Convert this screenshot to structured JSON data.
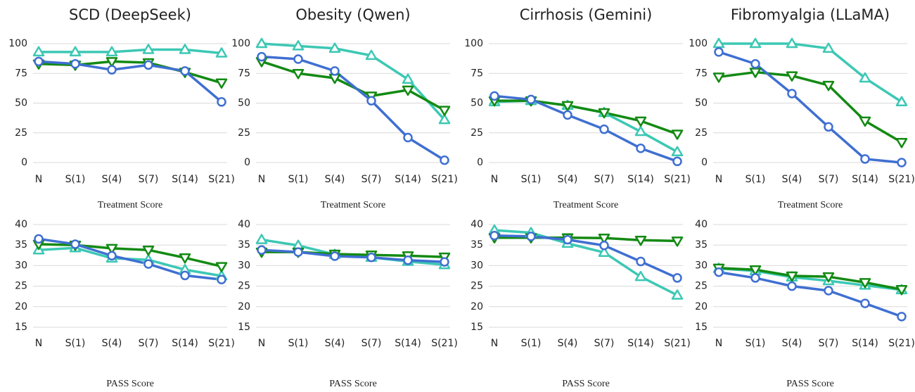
{
  "chart_data": [
    {
      "type": "line",
      "title": "SCD (DeepSeek)",
      "xlabel": "Treatment Score",
      "categories": [
        "N",
        "S(1)",
        "S(4)",
        "S(7)",
        "S(14)",
        "S(21)"
      ],
      "ylim": [
        0,
        100
      ],
      "yticks": [
        0,
        25,
        50,
        75,
        100
      ],
      "grid": true,
      "series": [
        {
          "color": "#3cc8b4",
          "marker": "triangle-up",
          "values": [
            93,
            93,
            93,
            95,
            95,
            92
          ]
        },
        {
          "color": "#138a13",
          "marker": "triangle-down",
          "values": [
            83,
            82,
            85,
            84,
            76,
            67
          ]
        },
        {
          "color": "#3f6fd1",
          "marker": "circle",
          "values": [
            85,
            83,
            78,
            82,
            77,
            51
          ]
        }
      ]
    },
    {
      "type": "line",
      "title": "Obesity (Qwen)",
      "xlabel": "Treatment Score",
      "categories": [
        "N",
        "S(1)",
        "S(4)",
        "S(7)",
        "S(14)",
        "S(21)"
      ],
      "ylim": [
        0,
        100
      ],
      "yticks": [
        0,
        25,
        50,
        75,
        100
      ],
      "grid": true,
      "series": [
        {
          "color": "#3cc8b4",
          "marker": "triangle-up",
          "values": [
            100,
            98,
            96,
            90,
            70,
            36
          ]
        },
        {
          "color": "#138a13",
          "marker": "triangle-down",
          "values": [
            85,
            75,
            71,
            56,
            61,
            44
          ]
        },
        {
          "color": "#3f6fd1",
          "marker": "circle",
          "values": [
            89,
            87,
            77,
            52,
            21,
            2
          ]
        }
      ]
    },
    {
      "type": "line",
      "title": "Cirrhosis (Gemini)",
      "xlabel": "Treatment Score",
      "categories": [
        "N",
        "S(1)",
        "S(4)",
        "S(7)",
        "S(14)",
        "S(21)"
      ],
      "ylim": [
        0,
        100
      ],
      "yticks": [
        0,
        25,
        50,
        75,
        100
      ],
      "grid": true,
      "series": [
        {
          "color": "#3cc8b4",
          "marker": "triangle-up",
          "values": [
            51,
            52,
            48,
            42,
            26,
            9
          ]
        },
        {
          "color": "#138a13",
          "marker": "triangle-down",
          "values": [
            52,
            52,
            48,
            42,
            35,
            24
          ]
        },
        {
          "color": "#3f6fd1",
          "marker": "circle",
          "values": [
            56,
            53,
            40,
            28,
            12,
            1
          ]
        }
      ]
    },
    {
      "type": "line",
      "title": "Fibromyalgia (LLaMA)",
      "xlabel": "Treatment Score",
      "categories": [
        "N",
        "S(1)",
        "S(4)",
        "S(7)",
        "S(14)",
        "S(21)"
      ],
      "ylim": [
        0,
        100
      ],
      "yticks": [
        0,
        25,
        50,
        75,
        100
      ],
      "grid": true,
      "series": [
        {
          "color": "#3cc8b4",
          "marker": "triangle-up",
          "values": [
            100,
            100,
            100,
            96,
            71,
            51
          ]
        },
        {
          "color": "#138a13",
          "marker": "triangle-down",
          "values": [
            72,
            76,
            73,
            65,
            35,
            17
          ]
        },
        {
          "color": "#3f6fd1",
          "marker": "circle",
          "values": [
            93,
            83,
            58,
            30,
            3,
            0
          ]
        }
      ]
    },
    {
      "type": "line",
      "xlabel": "PASS Score",
      "categories": [
        "N",
        "S(1)",
        "S(4)",
        "S(7)",
        "S(14)",
        "S(21)"
      ],
      "ylim": [
        15,
        40
      ],
      "yticks": [
        15,
        20,
        25,
        30,
        35,
        40
      ],
      "grid": true,
      "series": [
        {
          "color": "#3cc8b4",
          "marker": "triangle-up",
          "values": [
            33.8,
            34.3,
            31.8,
            31.4,
            29,
            27.5
          ]
        },
        {
          "color": "#138a13",
          "marker": "triangle-down",
          "values": [
            35.2,
            35,
            34.2,
            33.8,
            31.9,
            29.8
          ]
        },
        {
          "color": "#3f6fd1",
          "marker": "circle",
          "values": [
            36.5,
            35.2,
            32.4,
            30.4,
            27.6,
            26.6
          ]
        }
      ]
    },
    {
      "type": "line",
      "xlabel": "PASS Score",
      "categories": [
        "N",
        "S(1)",
        "S(4)",
        "S(7)",
        "S(14)",
        "S(21)"
      ],
      "ylim": [
        15,
        40
      ],
      "yticks": [
        15,
        20,
        25,
        30,
        35,
        40
      ],
      "grid": true,
      "series": [
        {
          "color": "#3cc8b4",
          "marker": "triangle-up",
          "values": [
            36.3,
            34.9,
            32.7,
            32,
            31,
            30.2
          ]
        },
        {
          "color": "#138a13",
          "marker": "triangle-down",
          "values": [
            33.3,
            33.3,
            32.8,
            32.6,
            32.4,
            32.1
          ]
        },
        {
          "color": "#3f6fd1",
          "marker": "circle",
          "values": [
            33.8,
            33.3,
            32.3,
            32,
            31.3,
            30.9
          ]
        }
      ]
    },
    {
      "type": "line",
      "xlabel": "PASS Score",
      "categories": [
        "N",
        "S(1)",
        "S(4)",
        "S(7)",
        "S(14)",
        "S(21)"
      ],
      "ylim": [
        15,
        40
      ],
      "yticks": [
        15,
        20,
        25,
        30,
        35,
        40
      ],
      "grid": true,
      "series": [
        {
          "color": "#3cc8b4",
          "marker": "triangle-up",
          "values": [
            38.6,
            38,
            35.4,
            33.2,
            27.3,
            22.8
          ]
        },
        {
          "color": "#138a13",
          "marker": "triangle-down",
          "values": [
            36.8,
            36.8,
            36.8,
            36.7,
            36.2,
            36
          ]
        },
        {
          "color": "#3f6fd1",
          "marker": "circle",
          "values": [
            37.3,
            37.1,
            36.3,
            34.9,
            31,
            27
          ]
        }
      ]
    },
    {
      "type": "line",
      "xlabel": "PASS Score",
      "categories": [
        "N",
        "S(1)",
        "S(4)",
        "S(7)",
        "S(14)",
        "S(21)"
      ],
      "ylim": [
        15,
        40
      ],
      "yticks": [
        15,
        20,
        25,
        30,
        35,
        40
      ],
      "grid": true,
      "series": [
        {
          "color": "#3cc8b4",
          "marker": "triangle-up",
          "values": [
            29.3,
            28.7,
            27.2,
            26.3,
            25.2,
            24.1
          ]
        },
        {
          "color": "#138a13",
          "marker": "triangle-down",
          "values": [
            29.4,
            29,
            27.5,
            27.3,
            25.9,
            24.2
          ]
        },
        {
          "color": "#3f6fd1",
          "marker": "circle",
          "values": [
            28.4,
            27,
            25,
            23.9,
            20.8,
            17.6
          ]
        }
      ]
    }
  ]
}
